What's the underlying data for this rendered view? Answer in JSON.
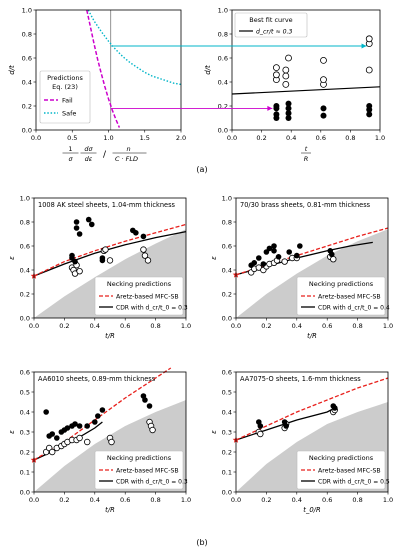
{
  "captions": {
    "a": "(a)",
    "b": "(b)"
  },
  "chart_data": [
    {
      "id": "a1",
      "type": "line",
      "xlabel": "1/σ_Y dσ_Y/dε_eq / n/(C·FLD_0)",
      "ylabel": "d/t",
      "xlim": [
        0,
        2
      ],
      "ylim": [
        0,
        1
      ],
      "xticks": [
        "0.0",
        "0.5",
        "1.0",
        "1.5",
        "2.0"
      ],
      "yticks": [
        "0.0",
        "0.2",
        "0.4",
        "0.6",
        "0.8",
        "1.0"
      ],
      "legend_title": "Predictions",
      "legend_subtitle": "Eq. (23)",
      "legend_placement": "lower-left",
      "series": [
        {
          "name": "Fail",
          "color": "#cc00cc",
          "style": "dashed",
          "x": [
            0.7,
            0.75,
            0.8,
            0.85,
            0.9,
            0.95,
            1.0,
            1.05,
            1.1,
            1.15
          ],
          "y": [
            1.0,
            0.86,
            0.72,
            0.59,
            0.47,
            0.36,
            0.26,
            0.17,
            0.09,
            0.02
          ]
        },
        {
          "name": "Safe",
          "color": "#00b5c8",
          "style": "dotted",
          "x": [
            0.72,
            0.8,
            0.9,
            1.0,
            1.1,
            1.2,
            1.3,
            1.4,
            1.5,
            1.6,
            1.7,
            1.8,
            1.9,
            2.0
          ],
          "y": [
            1.0,
            0.91,
            0.82,
            0.74,
            0.67,
            0.61,
            0.56,
            0.52,
            0.48,
            0.45,
            0.43,
            0.41,
            0.39,
            0.38
          ]
        }
      ],
      "vline_x": 1.03
    },
    {
      "id": "a2",
      "type": "scatter",
      "xlabel": "t0/R",
      "ylabel": "d/t",
      "xlim": [
        0,
        1.1
      ],
      "ylim": [
        0,
        1
      ],
      "xticks": [
        "0.0",
        "0.2",
        "0.4",
        "0.6",
        "0.8",
        "1.0"
      ],
      "yticks": [
        "0.0",
        "0.2",
        "0.4",
        "0.6",
        "0.8",
        "1.0"
      ],
      "legend_title": "Best fit curve",
      "legend_entry": "d_cr/t ≈ 0.3",
      "legend_placement": "upper-left",
      "fit": {
        "x": [
          0.0,
          1.1
        ],
        "y": [
          0.3,
          0.36
        ]
      },
      "open_points": [
        [
          0.33,
          0.42
        ],
        [
          0.33,
          0.46
        ],
        [
          0.33,
          0.52
        ],
        [
          0.4,
          0.38
        ],
        [
          0.4,
          0.45
        ],
        [
          0.4,
          0.5
        ],
        [
          0.42,
          0.6
        ],
        [
          0.68,
          0.38
        ],
        [
          0.68,
          0.42
        ],
        [
          0.68,
          0.58
        ],
        [
          1.02,
          0.5
        ],
        [
          1.02,
          0.72
        ],
        [
          1.02,
          0.76
        ]
      ],
      "filled_points": [
        [
          0.33,
          0.1
        ],
        [
          0.33,
          0.13
        ],
        [
          0.33,
          0.18
        ],
        [
          0.33,
          0.2
        ],
        [
          0.42,
          0.1
        ],
        [
          0.42,
          0.14
        ],
        [
          0.42,
          0.18
        ],
        [
          0.42,
          0.22
        ],
        [
          0.68,
          0.12
        ],
        [
          0.68,
          0.18
        ],
        [
          1.02,
          0.13
        ],
        [
          1.02,
          0.17
        ],
        [
          1.02,
          0.2
        ]
      ]
    },
    {
      "id": "b1",
      "type": "scatter",
      "title": "1008 AK steel sheets, 1.04-mm thickness",
      "xlabel": "t/R",
      "ylabel": "ε_1,out",
      "xlim": [
        0,
        1
      ],
      "ylim": [
        0,
        1
      ],
      "xticks": [
        "0.0",
        "0.2",
        "0.4",
        "0.6",
        "0.8",
        "1.0"
      ],
      "yticks": [
        "0.0",
        "0.2",
        "0.4",
        "0.6",
        "0.8",
        "1.0"
      ],
      "legend_title": "Necking predictions",
      "legend_entries": [
        "Aretz-based MFC-SB",
        "CDR with d_cr/t_0 = 0.3"
      ],
      "legend_placement": "lower-right",
      "forming_limit_y0": 0.35,
      "shade": {
        "x": [
          0,
          0.2,
          0.4,
          0.6,
          0.8,
          1.0
        ],
        "y": [
          0,
          0.18,
          0.34,
          0.49,
          0.62,
          0.74
        ]
      },
      "red": {
        "x": [
          0,
          0.2,
          0.4,
          0.6,
          0.8,
          1.0
        ],
        "y": [
          0.35,
          0.47,
          0.56,
          0.64,
          0.71,
          0.78
        ]
      },
      "black": {
        "x": [
          0,
          0.2,
          0.4,
          0.6,
          0.8,
          1.0
        ],
        "y": [
          0.35,
          0.45,
          0.54,
          0.61,
          0.67,
          0.72
        ]
      },
      "filled_points": [
        [
          0.25,
          0.52
        ],
        [
          0.25,
          0.5
        ],
        [
          0.27,
          0.47
        ],
        [
          0.28,
          0.8
        ],
        [
          0.28,
          0.75
        ],
        [
          0.3,
          0.7
        ],
        [
          0.36,
          0.82
        ],
        [
          0.38,
          0.78
        ],
        [
          0.45,
          0.5
        ],
        [
          0.45,
          0.48
        ],
        [
          0.65,
          0.73
        ],
        [
          0.67,
          0.71
        ],
        [
          0.72,
          0.68
        ]
      ],
      "open_points": [
        [
          0.25,
          0.42
        ],
        [
          0.26,
          0.4
        ],
        [
          0.27,
          0.37
        ],
        [
          0.28,
          0.44
        ],
        [
          0.3,
          0.39
        ],
        [
          0.46,
          0.56
        ],
        [
          0.47,
          0.57
        ],
        [
          0.5,
          0.48
        ],
        [
          0.72,
          0.57
        ],
        [
          0.73,
          0.52
        ],
        [
          0.75,
          0.48
        ]
      ]
    },
    {
      "id": "b2",
      "type": "scatter",
      "title": "70/30 brass sheets, 0.81-mm thickness",
      "xlabel": "t/R",
      "ylabel": "ε_1,out",
      "xlim": [
        0,
        1
      ],
      "ylim": [
        0,
        1
      ],
      "xticks": [
        "0.0",
        "0.2",
        "0.4",
        "0.6",
        "0.8",
        "1.0"
      ],
      "yticks": [
        "0.0",
        "0.2",
        "0.4",
        "0.6",
        "0.8",
        "1.0"
      ],
      "legend_title": "Necking predictions",
      "legend_entries": [
        "Aretz-based MFC-SB",
        "CDR with d_cr/t_0 = 0.4"
      ],
      "legend_placement": "lower-right",
      "shade": {
        "x": [
          0,
          0.2,
          0.4,
          0.6,
          0.8,
          1.0
        ],
        "y": [
          0,
          0.2,
          0.37,
          0.52,
          0.64,
          0.74
        ]
      },
      "red": {
        "x": [
          0,
          0.2,
          0.4,
          0.6,
          0.8,
          1.0
        ],
        "y": [
          0.36,
          0.44,
          0.52,
          0.6,
          0.68,
          0.75
        ]
      },
      "black": {
        "x": [
          0,
          0.2,
          0.4,
          0.6,
          0.75,
          0.9
        ],
        "y": [
          0.36,
          0.43,
          0.5,
          0.56,
          0.6,
          0.63
        ]
      },
      "filled_points": [
        [
          0.1,
          0.44
        ],
        [
          0.12,
          0.46
        ],
        [
          0.15,
          0.5
        ],
        [
          0.18,
          0.45
        ],
        [
          0.2,
          0.55
        ],
        [
          0.22,
          0.58
        ],
        [
          0.25,
          0.6
        ],
        [
          0.25,
          0.56
        ],
        [
          0.28,
          0.51
        ],
        [
          0.35,
          0.55
        ],
        [
          0.4,
          0.52
        ],
        [
          0.42,
          0.6
        ],
        [
          0.62,
          0.56
        ],
        [
          0.63,
          0.53
        ]
      ],
      "open_points": [
        [
          0.1,
          0.38
        ],
        [
          0.12,
          0.41
        ],
        [
          0.15,
          0.42
        ],
        [
          0.18,
          0.4
        ],
        [
          0.2,
          0.43
        ],
        [
          0.22,
          0.45
        ],
        [
          0.25,
          0.46
        ],
        [
          0.27,
          0.48
        ],
        [
          0.32,
          0.47
        ],
        [
          0.37,
          0.5
        ],
        [
          0.4,
          0.5
        ],
        [
          0.62,
          0.51
        ],
        [
          0.64,
          0.49
        ]
      ]
    },
    {
      "id": "b3",
      "type": "scatter",
      "title": "AA6010 sheets, 0.89-mm thickness",
      "xlabel": "t/R",
      "ylabel": "ε_1,out",
      "xlim": [
        0,
        1
      ],
      "ylim": [
        0,
        0.6
      ],
      "xticks": [
        "0.0",
        "0.2",
        "0.4",
        "0.6",
        "0.8",
        "1.0"
      ],
      "yticks": [
        "0.0",
        "0.1",
        "0.2",
        "0.3",
        "0.4",
        "0.5",
        "0.6"
      ],
      "legend_title": "Necking predictions",
      "legend_entries": [
        "Aretz-based MFC-SB",
        "CDR with d_cr/t_0 = 0.3"
      ],
      "legend_placement": "lower-right",
      "shade": {
        "x": [
          0,
          0.2,
          0.4,
          0.6,
          0.8,
          1.0
        ],
        "y": [
          0,
          0.13,
          0.24,
          0.33,
          0.4,
          0.46
        ]
      },
      "red": {
        "x": [
          0,
          0.2,
          0.4,
          0.6,
          0.8,
          0.9
        ],
        "y": [
          0.16,
          0.25,
          0.36,
          0.47,
          0.57,
          0.62
        ]
      },
      "black": {
        "x": [
          0,
          0.2,
          0.4,
          0.45
        ],
        "y": [
          0.16,
          0.23,
          0.32,
          0.35
        ]
      },
      "filled_points": [
        [
          0.08,
          0.4
        ],
        [
          0.1,
          0.28
        ],
        [
          0.12,
          0.29
        ],
        [
          0.15,
          0.27
        ],
        [
          0.18,
          0.3
        ],
        [
          0.2,
          0.31
        ],
        [
          0.22,
          0.32
        ],
        [
          0.25,
          0.33
        ],
        [
          0.27,
          0.34
        ],
        [
          0.3,
          0.33
        ],
        [
          0.35,
          0.33
        ],
        [
          0.4,
          0.35
        ],
        [
          0.42,
          0.38
        ],
        [
          0.45,
          0.41
        ],
        [
          0.72,
          0.48
        ],
        [
          0.73,
          0.46
        ],
        [
          0.76,
          0.43
        ]
      ],
      "open_points": [
        [
          0.08,
          0.2
        ],
        [
          0.1,
          0.22
        ],
        [
          0.12,
          0.2
        ],
        [
          0.15,
          0.22
        ],
        [
          0.18,
          0.23
        ],
        [
          0.2,
          0.24
        ],
        [
          0.22,
          0.25
        ],
        [
          0.25,
          0.26
        ],
        [
          0.28,
          0.26
        ],
        [
          0.3,
          0.27
        ],
        [
          0.35,
          0.25
        ],
        [
          0.5,
          0.27
        ],
        [
          0.51,
          0.25
        ],
        [
          0.76,
          0.35
        ],
        [
          0.77,
          0.33
        ],
        [
          0.78,
          0.31
        ]
      ]
    },
    {
      "id": "b4",
      "type": "scatter",
      "title": "AA7075-O sheets, 1.6-mm thickness",
      "xlabel": "t_0/R",
      "ylabel": "ε_1,out",
      "xlim": [
        0,
        1
      ],
      "ylim": [
        0,
        0.6
      ],
      "xticks": [
        "0.0",
        "0.2",
        "0.4",
        "0.6",
        "0.8",
        "1.0"
      ],
      "yticks": [
        "0.0",
        "0.1",
        "0.2",
        "0.3",
        "0.4",
        "0.5",
        "0.6"
      ],
      "legend_title": "Necking predictions",
      "legend_entries": [
        "Aretz-based MFC-SB",
        "CDR with d_cr/t_0 = 0.5"
      ],
      "legend_placement": "lower-right",
      "shade": {
        "x": [
          0,
          0.2,
          0.4,
          0.6,
          0.8,
          1.0
        ],
        "y": [
          0,
          0.14,
          0.25,
          0.34,
          0.4,
          0.45
        ]
      },
      "red": {
        "x": [
          0,
          0.2,
          0.4,
          0.6,
          0.8,
          1.0
        ],
        "y": [
          0.26,
          0.33,
          0.4,
          0.46,
          0.52,
          0.57
        ]
      },
      "black": {
        "x": [
          0,
          0.2,
          0.4,
          0.6,
          0.65
        ],
        "y": [
          0.26,
          0.31,
          0.36,
          0.4,
          0.42
        ]
      },
      "filled_points": [
        [
          0.15,
          0.35
        ],
        [
          0.16,
          0.33
        ],
        [
          0.32,
          0.35
        ],
        [
          0.33,
          0.33
        ],
        [
          0.64,
          0.43
        ],
        [
          0.65,
          0.42
        ]
      ],
      "open_points": [
        [
          0.15,
          0.3
        ],
        [
          0.16,
          0.29
        ],
        [
          0.32,
          0.32
        ],
        [
          0.33,
          0.34
        ],
        [
          0.64,
          0.4
        ],
        [
          0.65,
          0.41
        ]
      ]
    }
  ]
}
